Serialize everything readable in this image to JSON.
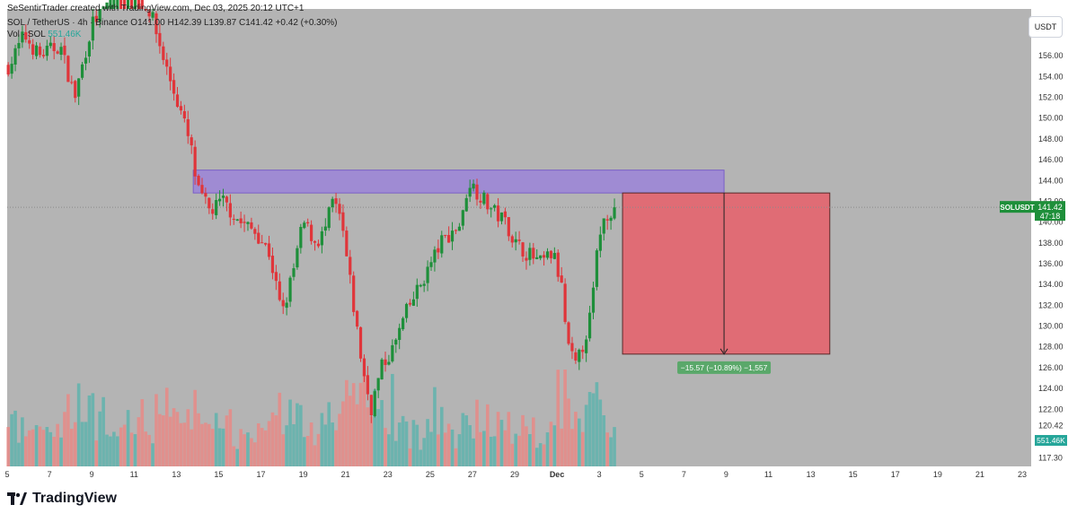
{
  "header": {
    "credit": "SeSentirTrader created with TradingView.com, Dec 03, 2025 20:12 UTC+1",
    "symbol_line": "SOL / TetherUS · 4h · Binance",
    "open": "O141.00",
    "high": "H142.39",
    "low": "L139.87",
    "close": "C141.42",
    "change": "+0.42 (+0.30%)",
    "volume_label": "Vol · SOL",
    "volume_value": "551.46K"
  },
  "currency_button": "USDT",
  "brand": {
    "name": "TradingView",
    "logo_icon": "tradingview-logo-icon"
  },
  "price_badge": {
    "symbol": "SOLUSDT",
    "price": "141.42",
    "countdown": "47:18"
  },
  "volume_badge": "551.46K",
  "measure_label": "−15.57 (−10.89%) −1,557",
  "colors": {
    "background": "#b4b4b4",
    "up": "#1e8f3a",
    "down": "#e0353a",
    "zone": "#9b84d8",
    "target": "#e06c75",
    "vol_up": "#5fb3ad",
    "vol_down": "#e88a86"
  },
  "chart_data": {
    "type": "candlestick",
    "interval": "4h",
    "ylim": [
      116.5,
      160.5
    ],
    "y_ticks": [
      "156.00",
      "154.00",
      "152.00",
      "150.00",
      "148.00",
      "146.00",
      "144.00",
      "142.00",
      "140.00",
      "138.00",
      "136.00",
      "134.00",
      "132.00",
      "130.00",
      "128.00",
      "126.00",
      "124.00",
      "122.00",
      "120.42",
      "117.30"
    ],
    "x_ticks": [
      {
        "label": "5",
        "day": 5
      },
      {
        "label": "7",
        "day": 7
      },
      {
        "label": "9",
        "day": 9
      },
      {
        "label": "11",
        "day": 11
      },
      {
        "label": "13",
        "day": 13
      },
      {
        "label": "15",
        "day": 15
      },
      {
        "label": "17",
        "day": 17
      },
      {
        "label": "19",
        "day": 19
      },
      {
        "label": "21",
        "day": 21
      },
      {
        "label": "23",
        "day": 23
      },
      {
        "label": "25",
        "day": 25
      },
      {
        "label": "27",
        "day": 27
      },
      {
        "label": "29",
        "day": 29
      },
      {
        "label": "Dec",
        "day": 31
      },
      {
        "label": "3",
        "day": 33
      },
      {
        "label": "5",
        "day": 35
      },
      {
        "label": "7",
        "day": 37
      },
      {
        "label": "9",
        "day": 39
      },
      {
        "label": "11",
        "day": 41
      },
      {
        "label": "13",
        "day": 43
      },
      {
        "label": "15",
        "day": 45
      },
      {
        "label": "17",
        "day": 47
      },
      {
        "label": "19",
        "day": 49
      },
      {
        "label": "21",
        "day": 51
      },
      {
        "label": "23",
        "day": 53
      }
    ],
    "x_range_days": [
      5,
      53
    ],
    "last_candle_day": 33.8,
    "close_path": [
      {
        "day": 5.1,
        "price": 155
      },
      {
        "day": 5.8,
        "price": 158
      },
      {
        "day": 6.5,
        "price": 156
      },
      {
        "day": 7.5,
        "price": 157
      },
      {
        "day": 8.2,
        "price": 152
      },
      {
        "day": 9.0,
        "price": 159
      },
      {
        "day": 10.0,
        "price": 162
      },
      {
        "day": 11.0,
        "price": 163
      },
      {
        "day": 11.8,
        "price": 160
      },
      {
        "day": 12.5,
        "price": 155
      },
      {
        "day": 13.3,
        "price": 150
      },
      {
        "day": 13.7,
        "price": 147
      },
      {
        "day": 14.0,
        "price": 143
      },
      {
        "day": 14.6,
        "price": 141
      },
      {
        "day": 15.2,
        "price": 142
      },
      {
        "day": 16.0,
        "price": 140
      },
      {
        "day": 16.8,
        "price": 139
      },
      {
        "day": 17.4,
        "price": 137
      },
      {
        "day": 18.0,
        "price": 131
      },
      {
        "day": 18.5,
        "price": 135
      },
      {
        "day": 19.0,
        "price": 140
      },
      {
        "day": 19.6,
        "price": 138
      },
      {
        "day": 20.0,
        "price": 139
      },
      {
        "day": 20.4,
        "price": 142
      },
      {
        "day": 20.8,
        "price": 140
      },
      {
        "day": 21.3,
        "price": 133
      },
      {
        "day": 21.8,
        "price": 126
      },
      {
        "day": 22.2,
        "price": 122
      },
      {
        "day": 22.7,
        "price": 126
      },
      {
        "day": 23.3,
        "price": 128
      },
      {
        "day": 23.8,
        "price": 131
      },
      {
        "day": 24.3,
        "price": 133
      },
      {
        "day": 24.8,
        "price": 135
      },
      {
        "day": 25.5,
        "price": 138
      },
      {
        "day": 26.0,
        "price": 139
      },
      {
        "day": 26.5,
        "price": 140
      },
      {
        "day": 26.8,
        "price": 144
      },
      {
        "day": 27.2,
        "price": 143
      },
      {
        "day": 27.6,
        "price": 142
      },
      {
        "day": 28.0,
        "price": 141
      },
      {
        "day": 28.6,
        "price": 140
      },
      {
        "day": 29.0,
        "price": 138
      },
      {
        "day": 29.6,
        "price": 137
      },
      {
        "day": 30.2,
        "price": 136
      },
      {
        "day": 30.8,
        "price": 137
      },
      {
        "day": 31.2,
        "price": 134
      },
      {
        "day": 31.5,
        "price": 128
      },
      {
        "day": 31.9,
        "price": 126
      },
      {
        "day": 32.2,
        "price": 128
      },
      {
        "day": 32.6,
        "price": 131
      },
      {
        "day": 33.0,
        "price": 139
      },
      {
        "day": 33.4,
        "price": 141
      },
      {
        "day": 33.8,
        "price": 141.42
      }
    ],
    "volume_max": 130,
    "zones": [
      {
        "name": "supply-zone",
        "x_start": 13.8,
        "x_end": 38.9,
        "y_top": 145.0,
        "y_bottom": 142.8
      },
      {
        "name": "target-box",
        "x_start": 34.1,
        "x_end": 43.9,
        "y_top": 142.8,
        "y_bottom": 127.3
      }
    ],
    "measure": {
      "x": 38.9,
      "from": 142.8,
      "to": 127.3,
      "delta": -15.57,
      "percent": -10.89
    }
  }
}
